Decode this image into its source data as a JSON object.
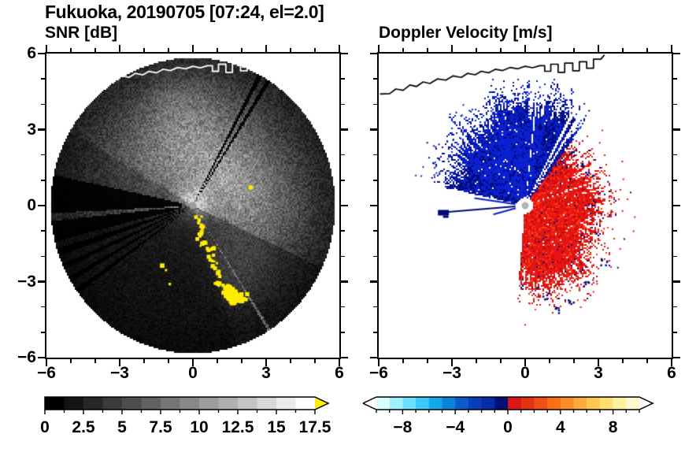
{
  "header": {
    "title": "Fukuoka, 20190705 [07:24, el=2.0]"
  },
  "panels": [
    {
      "id": "snr",
      "title": "SNR [dB]",
      "axis": {
        "xticks": [
          {
            "label": "−6",
            "value": -6
          },
          {
            "label": "−3",
            "value": -3
          },
          {
            "label": "0",
            "value": 0
          },
          {
            "label": "3",
            "value": 3
          },
          {
            "label": "6",
            "value": 6
          }
        ],
        "yticks": [
          {
            "label": "6",
            "value": 6
          },
          {
            "label": "3",
            "value": 3
          },
          {
            "label": "0",
            "value": 0
          },
          {
            "label": "−3",
            "value": -3
          },
          {
            "label": "−6",
            "value": -6
          }
        ]
      },
      "colorbar": {
        "min": 0,
        "max": 17.5,
        "minor_step": 1.25,
        "arrow_left": false,
        "arrow_right": true,
        "over_color": "#ffec00",
        "colors": [
          "#000000",
          "#141414",
          "#272727",
          "#3b3b3b",
          "#4e4e4e",
          "#626262",
          "#767676",
          "#898989",
          "#9d9d9d",
          "#b0b0b0",
          "#c4c4c4",
          "#d8d8d8",
          "#ebebeb",
          "#ffffff"
        ],
        "tick_labels": [
          {
            "label": "0",
            "value": 0
          },
          {
            "label": "2.5",
            "value": 2.5
          },
          {
            "label": "5",
            "value": 5
          },
          {
            "label": "7.5",
            "value": 7.5
          },
          {
            "label": "10",
            "value": 10
          },
          {
            "label": "12.5",
            "value": 12.5
          },
          {
            "label": "15",
            "value": 15
          },
          {
            "label": "17.5",
            "value": 17.5
          }
        ]
      }
    },
    {
      "id": "velocity",
      "title": "Doppler Velocity [m/s]",
      "axis": {
        "xticks": [
          {
            "label": "−6",
            "value": -6
          },
          {
            "label": "−3",
            "value": -3
          },
          {
            "label": "0",
            "value": 0
          },
          {
            "label": "3",
            "value": 3
          },
          {
            "label": "6",
            "value": 6
          }
        ]
      },
      "colorbar": {
        "min": -10,
        "max": 10,
        "minor_step": 1,
        "arrow_left": true,
        "arrow_right": true,
        "under_color": "#ffffff",
        "over_color": "#ffffff",
        "colors": [
          "#d8ffff",
          "#a0f0ff",
          "#6ee0ff",
          "#3cc8fa",
          "#14a8ec",
          "#0a82dc",
          "#0a5ac8",
          "#0a3cbe",
          "#0a28aa",
          "#050f78",
          "#dc1414",
          "#e63214",
          "#f05014",
          "#fa6e14",
          "#ff8c28",
          "#ffaa3c",
          "#ffc850",
          "#ffe070",
          "#fff0a0",
          "#fffad2"
        ],
        "tick_labels": [
          {
            "label": "−8",
            "value": -8
          },
          {
            "label": "−4",
            "value": -4
          },
          {
            "label": "0",
            "value": 0
          },
          {
            "label": "4",
            "value": 4
          },
          {
            "label": "8",
            "value": 8
          }
        ]
      }
    }
  ],
  "coastline_colors": {
    "snr": "#ffffff",
    "velocity": "#000000"
  },
  "coastline": [
    [
      -5.95,
      4.4
    ],
    [
      -5.55,
      4.42
    ],
    [
      -5.3,
      4.6
    ],
    [
      -5.0,
      4.55
    ],
    [
      -4.72,
      4.76
    ],
    [
      -4.45,
      4.7
    ],
    [
      -4.18,
      4.88
    ],
    [
      -3.9,
      4.82
    ],
    [
      -3.6,
      5.0
    ],
    [
      -3.25,
      4.95
    ],
    [
      -2.95,
      5.12
    ],
    [
      -2.62,
      5.06
    ],
    [
      -2.35,
      5.22
    ],
    [
      -2.05,
      5.16
    ],
    [
      -1.8,
      5.3
    ],
    [
      -1.5,
      5.24
    ],
    [
      -1.22,
      5.38
    ],
    [
      -0.92,
      5.33
    ],
    [
      -0.62,
      5.45
    ],
    [
      -0.3,
      5.4
    ],
    [
      0.0,
      5.5
    ],
    [
      0.3,
      5.44
    ],
    [
      0.6,
      5.52
    ],
    [
      0.8,
      5.52
    ],
    [
      0.8,
      5.3
    ],
    [
      1.05,
      5.3
    ],
    [
      1.05,
      5.58
    ],
    [
      1.35,
      5.58
    ],
    [
      1.35,
      5.26
    ],
    [
      1.62,
      5.26
    ],
    [
      1.62,
      5.62
    ],
    [
      1.95,
      5.62
    ],
    [
      1.95,
      5.32
    ],
    [
      2.22,
      5.32
    ],
    [
      2.22,
      5.68
    ],
    [
      2.52,
      5.68
    ],
    [
      2.52,
      5.42
    ],
    [
      2.8,
      5.42
    ],
    [
      2.8,
      5.78
    ],
    [
      3.1,
      5.78
    ],
    [
      3.25,
      5.95
    ]
  ],
  "chart_data": [
    {
      "type": "heatmap",
      "title": "SNR [dB]",
      "xlabel": "",
      "ylabel": "",
      "xlim": [
        -6,
        6
      ],
      "ylim": [
        -6,
        6
      ],
      "xticks": [
        -6,
        -3,
        0,
        3,
        6
      ],
      "yticks": [
        -6,
        -3,
        0,
        3,
        6
      ],
      "colorbar": {
        "range": [
          0,
          17.5
        ],
        "ticks": [
          0,
          2.5,
          5,
          7.5,
          10,
          12.5,
          15,
          17.5
        ],
        "over_arrow": "yellow"
      },
      "content": "Radar PPI scan disk of signal-to-noise ratio in grayscale; dark beam-blocked wedges toward west and two thin blocked rays toward northeast; bright echo cloud over upper and right portions; yellow clutter arc running south-southeast of radar; white coastline visible across the top of the disk",
      "scan_radius": 5.83,
      "blocked_sectors_deg": [
        [
          168,
          183
        ],
        [
          186,
          194
        ],
        [
          197,
          200
        ],
        [
          203.5,
          205.5
        ],
        [
          209,
          211
        ],
        [
          214.5,
          216.5
        ],
        [
          57,
          58.7
        ],
        [
          61,
          62.7
        ]
      ],
      "shade_sectors": [
        {
          "a0": 192,
          "a1": 288,
          "f": 0.42
        },
        {
          "a0": 288,
          "a1": 335,
          "f": 0.62
        },
        {
          "a0": 150,
          "a1": 168,
          "f": 0.75
        }
      ],
      "bright_blobs": [
        {
          "x": 0,
          "y": 1.4,
          "s": 3.0,
          "a": 42
        },
        {
          "x": 0.3,
          "y": 2.5,
          "s": 1.5,
          "a": 55
        },
        {
          "x": 2.7,
          "y": -0.2,
          "s": 1.5,
          "a": 48
        },
        {
          "x": 1.5,
          "y": 0.9,
          "s": 1.2,
          "a": 40
        },
        {
          "x": -2.0,
          "y": 1.7,
          "s": 1.3,
          "a": 28
        },
        {
          "x": 1.9,
          "y": -2.6,
          "s": 0.9,
          "a": 45
        },
        {
          "x": -0.7,
          "y": 4.0,
          "s": 0.9,
          "a": 25
        },
        {
          "x": 0,
          "y": 0,
          "s": 0.45,
          "a": 110
        }
      ],
      "bright_ray_deg": 302.5,
      "clutter_color": "#ffec00",
      "clutter_arc": [
        [
          0.18,
          -0.5
        ],
        [
          0.3,
          -0.85
        ],
        [
          0.22,
          -1.15
        ],
        [
          0.4,
          -1.45
        ],
        [
          0.62,
          -1.7
        ],
        [
          0.66,
          -2.0
        ],
        [
          0.85,
          -2.3
        ],
        [
          1.0,
          -2.6
        ],
        [
          0.95,
          -2.9
        ],
        [
          1.1,
          -3.1
        ],
        [
          1.35,
          -3.2
        ],
        [
          1.3,
          -3.45
        ],
        [
          1.6,
          -3.35
        ],
        [
          1.8,
          -3.55
        ],
        [
          2.0,
          -3.5
        ],
        [
          1.55,
          -3.6
        ]
      ],
      "clutter_spots": [
        [
          -1.35,
          -2.28
        ],
        [
          -1.15,
          -2.5
        ],
        [
          2.28,
          0.8
        ],
        [
          -1.0,
          -3.05
        ]
      ]
    },
    {
      "type": "heatmap",
      "title": "Doppler Velocity [m/s]",
      "xlabel": "",
      "ylabel": "",
      "xlim": [
        -6,
        6
      ],
      "ylim": [
        -6,
        6
      ],
      "xticks": [
        -6,
        -3,
        0,
        3,
        6
      ],
      "yticks": [
        -6,
        -3,
        0,
        3,
        6
      ],
      "colorbar": {
        "range": [
          -10,
          10
        ],
        "ticks": [
          -8,
          -4,
          0,
          4,
          8
        ]
      },
      "content": "Radar PPI Doppler velocity: approaching flow (negative, blue/navy) fan north-northwest of radar; receding flow (positive, red) fan east-southeast to south; white beam-blocked wedge toward west with thin blue rays; isolated navy echo west of radar; black coastline along the top",
      "scan_radius": 5.83,
      "blocked_sectors_deg": [
        [
          168,
          183
        ],
        [
          186,
          194
        ],
        [
          197,
          200
        ],
        [
          203.5,
          205.5
        ],
        [
          209,
          211
        ],
        [
          214.5,
          216.5
        ],
        [
          57,
          58.7
        ],
        [
          61,
          62.7
        ],
        [
          17.8,
          18.8
        ],
        [
          83.2,
          84.2
        ]
      ],
      "toward": {
        "a0": 53,
        "a1": 168,
        "edge_base": 3.15,
        "bump_center": 88,
        "bump_amp": 1.05,
        "bump_sigma": 34,
        "color_main": "#0a1ed2",
        "color_dark": "#000a78",
        "color_alt": "#0a28c8"
      },
      "away": {
        "a0": -95,
        "a1": 53,
        "edge_base": 2.7,
        "bump_center": -63,
        "bump_amp": 1.0,
        "bump_sigma": 24,
        "bump2_center": 8,
        "bump2_amp": 0.55,
        "bump2_sigma": 20,
        "color_main": "#e61414",
        "color_dark": "#b40a0a",
        "color_alt": "#ff3c14"
      },
      "navy": "#000a78",
      "rays": [
        {
          "th": 184.5,
          "r0": 0.4,
          "r1": 3.25,
          "color": "#000a78"
        },
        {
          "th": 172,
          "r0": 0.4,
          "r1": 2.1,
          "color": "#0a1ed2"
        },
        {
          "th": 195,
          "r0": 0.4,
          "r1": 1.35,
          "color": "#0a1ed2"
        }
      ],
      "blobs": [
        {
          "x": -3.35,
          "y": -0.28,
          "w": 0.45,
          "h": 0.22,
          "color": "#000a78"
        }
      ],
      "dark_clusters": [
        [
          0.75,
          -3.55
        ],
        [
          1.3,
          -4.1
        ],
        [
          1.85,
          -3.8
        ],
        [
          2.5,
          -3.05
        ],
        [
          3.2,
          -2.2
        ],
        [
          2.2,
          1.65
        ],
        [
          1.9,
          2.1
        ],
        [
          2.6,
          1.3
        ]
      ]
    }
  ]
}
